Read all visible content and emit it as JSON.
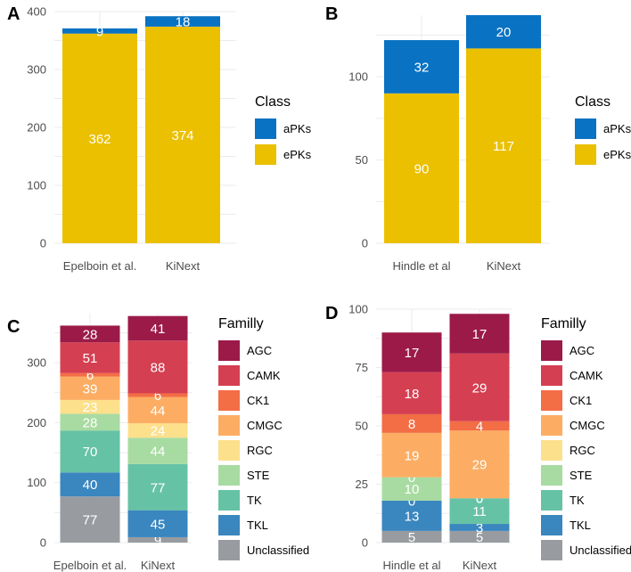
{
  "chart_data": [
    {
      "panel": "A",
      "type": "bar",
      "stacked": true,
      "categories": [
        "Epelboin et al.",
        "KiNext"
      ],
      "ylim": [
        0,
        400
      ],
      "yticks": [
        0,
        100,
        200,
        300,
        400
      ],
      "series": [
        {
          "name": "ePKs",
          "color": "#EBC000",
          "values": [
            362,
            374
          ]
        },
        {
          "name": "aPKs",
          "color": "#0A72C2",
          "values": [
            9,
            18
          ]
        }
      ],
      "legend": {
        "title": "Class",
        "entries": [
          {
            "label": "aPKs",
            "color": "#0A72C2"
          },
          {
            "label": "ePKs",
            "color": "#EBC000"
          }
        ]
      }
    },
    {
      "panel": "B",
      "type": "bar",
      "stacked": true,
      "categories": [
        "Hindle et al",
        "KiNext"
      ],
      "ylim": [
        0,
        137
      ],
      "yticks": [
        0,
        50,
        100
      ],
      "series": [
        {
          "name": "ePKs",
          "color": "#EBC000",
          "values": [
            90,
            117
          ]
        },
        {
          "name": "aPKs",
          "color": "#0A72C2",
          "values": [
            32,
            20
          ]
        }
      ],
      "legend": {
        "title": "Class",
        "entries": [
          {
            "label": "aPKs",
            "color": "#0A72C2"
          },
          {
            "label": "ePKs",
            "color": "#EBC000"
          }
        ]
      }
    },
    {
      "panel": "C",
      "type": "bar",
      "stacked": true,
      "categories": [
        "Epelboin et al.",
        "KiNext"
      ],
      "ylim": [
        0,
        382
      ],
      "yticks": [
        0,
        100,
        200,
        300
      ],
      "series": [
        {
          "name": "Unclassified",
          "color": "#989CA0",
          "values": [
            77,
            9
          ]
        },
        {
          "name": "TKL",
          "color": "#3A86BF",
          "values": [
            40,
            45
          ]
        },
        {
          "name": "TK",
          "color": "#66C2A5",
          "values": [
            70,
            77
          ]
        },
        {
          "name": "STE",
          "color": "#A8DBA1",
          "values": [
            28,
            44
          ]
        },
        {
          "name": "RGC",
          "color": "#FDE08B",
          "values": [
            23,
            24
          ]
        },
        {
          "name": "CMGC",
          "color": "#FCAD63",
          "values": [
            39,
            44
          ]
        },
        {
          "name": "CK1",
          "color": "#F36D45",
          "values": [
            6,
            6
          ]
        },
        {
          "name": "CAMK",
          "color": "#D53F52",
          "values": [
            51,
            88
          ]
        },
        {
          "name": "AGC",
          "color": "#9C1A48",
          "values": [
            28,
            41
          ]
        }
      ],
      "legend": {
        "title": "Familly",
        "entries": [
          {
            "label": "AGC",
            "color": "#9C1A48"
          },
          {
            "label": "CAMK",
            "color": "#D53F52"
          },
          {
            "label": "CK1",
            "color": "#F36D45"
          },
          {
            "label": "CMGC",
            "color": "#FCAD63"
          },
          {
            "label": "RGC",
            "color": "#FDE08B"
          },
          {
            "label": "STE",
            "color": "#A8DBA1"
          },
          {
            "label": "TK",
            "color": "#66C2A5"
          },
          {
            "label": "TKL",
            "color": "#3A86BF"
          },
          {
            "label": "Unclassified",
            "color": "#989CA0"
          }
        ]
      }
    },
    {
      "panel": "D",
      "type": "bar",
      "stacked": true,
      "categories": [
        "Hindle et al",
        "KiNext"
      ],
      "ylim": [
        0,
        100
      ],
      "yticks": [
        0,
        25,
        50,
        75,
        100
      ],
      "series": [
        {
          "name": "Unclassified",
          "color": "#989CA0",
          "values": [
            5,
            5
          ]
        },
        {
          "name": "TKL",
          "color": "#3A86BF",
          "values": [
            13,
            3
          ]
        },
        {
          "name": "TK",
          "color": "#66C2A5",
          "values": [
            0,
            11
          ]
        },
        {
          "name": "STE",
          "color": "#A8DBA1",
          "values": [
            10,
            0
          ]
        },
        {
          "name": "RGC",
          "color": "#FDE08B",
          "values": [
            0,
            0
          ]
        },
        {
          "name": "CMGC",
          "color": "#FCAD63",
          "values": [
            19,
            29
          ]
        },
        {
          "name": "CK1",
          "color": "#F36D45",
          "values": [
            8,
            4
          ]
        },
        {
          "name": "CAMK",
          "color": "#D53F52",
          "values": [
            18,
            29
          ]
        },
        {
          "name": "AGC",
          "color": "#9C1A48",
          "values": [
            17,
            17
          ]
        }
      ],
      "legend": {
        "title": "Familly",
        "entries": [
          {
            "label": "AGC",
            "color": "#9C1A48"
          },
          {
            "label": "CAMK",
            "color": "#D53F52"
          },
          {
            "label": "CK1",
            "color": "#F36D45"
          },
          {
            "label": "CMGC",
            "color": "#FCAD63"
          },
          {
            "label": "RGC",
            "color": "#FDE08B"
          },
          {
            "label": "STE",
            "color": "#A8DBA1"
          },
          {
            "label": "TK",
            "color": "#66C2A5"
          },
          {
            "label": "TKL",
            "color": "#3A86BF"
          },
          {
            "label": "Unclassified",
            "color": "#989CA0"
          }
        ]
      }
    }
  ]
}
